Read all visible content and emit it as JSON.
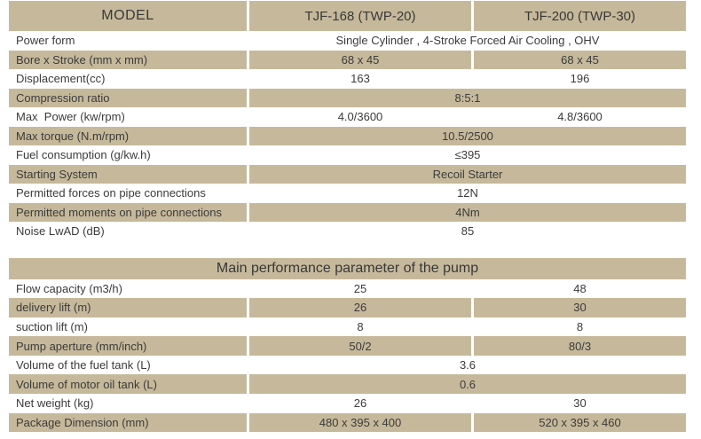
{
  "colors": {
    "tan": "#c6b99b",
    "text": "#3b3b3b",
    "background": "#ffffff"
  },
  "engine_table": {
    "header": {
      "model": "MODEL",
      "model1": "TJF-168 (TWP-20)",
      "model2": "TJF-200 (TWP-30)"
    },
    "rows": [
      {
        "label": "Power form",
        "merged": "Single Cylinder , 4-Stroke Forced Air Cooling , OHV",
        "shaded": false
      },
      {
        "label": "Bore x Stroke (mm x mm)",
        "v1": "68 x 45",
        "v2": "68 x 45",
        "shaded": true
      },
      {
        "label": "Displacement(cc)",
        "v1": "163",
        "v2": "196",
        "shaded": false
      },
      {
        "label": "Compression ratio",
        "merged": "8:5:1",
        "shaded": true
      },
      {
        "label": "Max  Power (kw/rpm)",
        "v1": "4.0/3600",
        "v2": "4.8/3600",
        "shaded": false
      },
      {
        "label": "Max torque (N.m/rpm)",
        "merged": "10.5/2500",
        "shaded": true
      },
      {
        "label": "Fuel consumption (g/kw.h)",
        "merged": "≤395",
        "shaded": false
      },
      {
        "label": "Starting System",
        "merged": "Recoil Starter",
        "shaded": true
      },
      {
        "label": "Permitted forces on pipe connections",
        "merged": "12N",
        "shaded": false
      },
      {
        "label": "Permitted moments on pipe connections",
        "merged": "4Nm",
        "shaded": true
      },
      {
        "label": "Noise LwAD (dB)",
        "merged": "85",
        "shaded": false
      }
    ]
  },
  "pump_table": {
    "title": "Main performance parameter of the pump",
    "rows": [
      {
        "label": "Flow capacity (m3/h)",
        "v1": "25",
        "v2": "48",
        "shaded": false
      },
      {
        "label": "delivery lift (m)",
        "v1": "26",
        "v2": "30",
        "shaded": true
      },
      {
        "label": "suction lift (m)",
        "v1": "8",
        "v2": "8",
        "shaded": false
      },
      {
        "label": "Pump aperture (mm/inch)",
        "v1": "50/2",
        "v2": "80/3",
        "shaded": true
      },
      {
        "label": "Volume of the fuel tank (L)",
        "merged": "3.6",
        "shaded": false
      },
      {
        "label": "Volume of motor oil tank (L)",
        "merged": "0.6",
        "shaded": true
      },
      {
        "label": "Net weight (kg)",
        "v1": "26",
        "v2": "30",
        "shaded": false
      },
      {
        "label": "Package Dimension (mm)",
        "v1": "480 x 395 x 400",
        "v2": "520 x 395 x 460",
        "shaded": true
      }
    ]
  }
}
